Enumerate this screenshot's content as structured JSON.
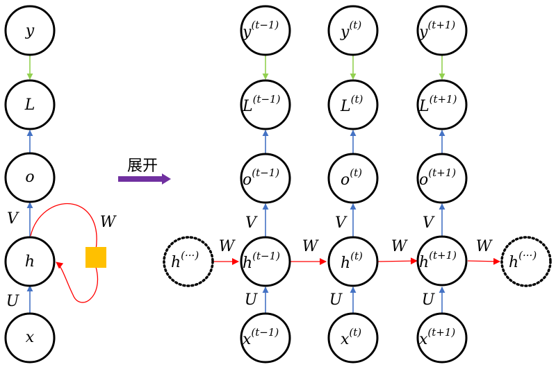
{
  "folded": {
    "nodes": {
      "y": "y",
      "L": "L",
      "o": "o",
      "h": "h",
      "x": "x"
    },
    "weights": {
      "V": "V",
      "U": "U",
      "W": "W"
    }
  },
  "unfold_label": "展开",
  "unrolled": {
    "left_context": {
      "base": "h",
      "sup": "(···)"
    },
    "right_context": {
      "base": "h",
      "sup": "(···)"
    },
    "steps": [
      {
        "sup": "(t−1)",
        "y": "y",
        "L": "L",
        "o": "o",
        "h": "h",
        "x": "x",
        "V": "V",
        "U": "U",
        "W_in": "W"
      },
      {
        "sup": "(t)",
        "y": "y",
        "L": "L",
        "o": "o",
        "h": "h",
        "x": "x",
        "V": "V",
        "U": "U",
        "W_in": "W"
      },
      {
        "sup": "(t+1)",
        "y": "y",
        "L": "L",
        "o": "o",
        "h": "h",
        "x": "x",
        "V": "V",
        "U": "U",
        "W_in": "W"
      }
    ],
    "W_out": "W"
  },
  "colors": {
    "blue_arrow": "#4472c4",
    "green_arrow": "#92d050",
    "red_arrow": "#ff0000",
    "unfold_arrow": "#7030a0",
    "weight_square": "#ffc000"
  }
}
